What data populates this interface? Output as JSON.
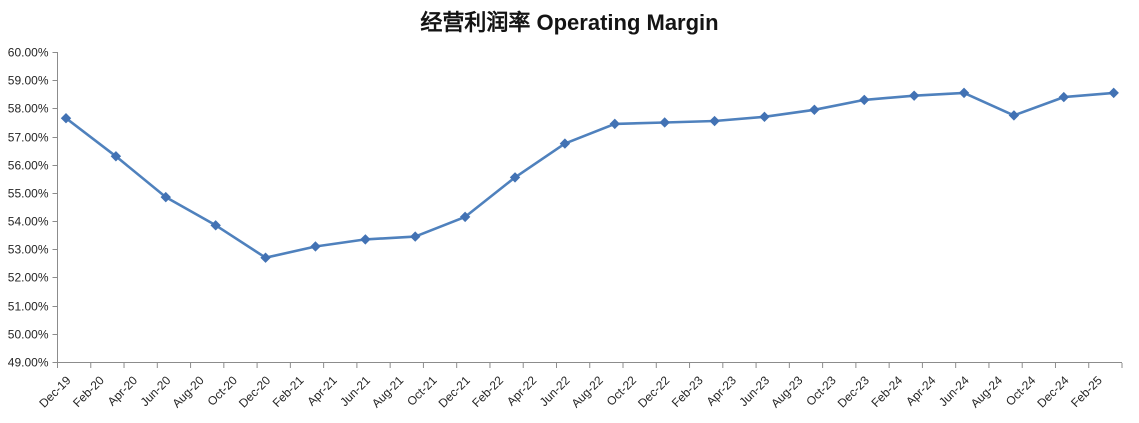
{
  "chart_data": {
    "type": "line",
    "title": "经营利润率 Operating Margin",
    "legend": "none",
    "grid": "off",
    "background": "#ffffff",
    "colors": {
      "line": "#4F81BD",
      "marker": "#4272B4",
      "axis_line": "#8C8C8C",
      "tick_text": "#262626",
      "title_text": "#141414"
    },
    "y_axis": {
      "min": 49,
      "max": 60,
      "step": 1,
      "format": "percent_2dp",
      "tick_labels": [
        "60.00%",
        "59.00%",
        "58.00%",
        "57.00%",
        "56.00%",
        "55.00%",
        "54.00%",
        "53.00%",
        "52.00%",
        "51.00%",
        "50.00%",
        "49.00%"
      ]
    },
    "x_axis": {
      "label_rotation_deg": 45,
      "tick_labels": [
        "Dec-19",
        "Feb-20",
        "Apr-20",
        "Jun-20",
        "Aug-20",
        "Oct-20",
        "Dec-20",
        "Feb-21",
        "Apr-21",
        "Jun-21",
        "Aug-21",
        "Oct-21",
        "Dec-21",
        "Feb-22",
        "Apr-22",
        "Jun-22",
        "Aug-22",
        "Oct-22",
        "Dec-22",
        "Feb-23",
        "Apr-23",
        "Jun-23",
        "Aug-23",
        "Oct-23",
        "Dec-23",
        "Feb-24",
        "Apr-24",
        "Jun-24",
        "Aug-24",
        "Oct-24",
        "Dec-24",
        "Feb-25"
      ]
    },
    "series": [
      {
        "name": "经营利润率 Operating Margin",
        "marker": "diamond",
        "points": [
          {
            "x": "Dec-19",
            "y": 57.65
          },
          {
            "x": "Mar-20",
            "y": 56.3
          },
          {
            "x": "Jun-20",
            "y": 54.85
          },
          {
            "x": "Sep-20",
            "y": 53.85
          },
          {
            "x": "Dec-20",
            "y": 52.7
          },
          {
            "x": "Mar-21",
            "y": 53.1
          },
          {
            "x": "Jun-21",
            "y": 53.35
          },
          {
            "x": "Sep-21",
            "y": 53.45
          },
          {
            "x": "Dec-21",
            "y": 54.15
          },
          {
            "x": "Mar-22",
            "y": 55.55
          },
          {
            "x": "Jun-22",
            "y": 56.75
          },
          {
            "x": "Sep-22",
            "y": 57.45
          },
          {
            "x": "Dec-22",
            "y": 57.5
          },
          {
            "x": "Mar-23",
            "y": 57.55
          },
          {
            "x": "Jun-23",
            "y": 57.7
          },
          {
            "x": "Sep-23",
            "y": 57.95
          },
          {
            "x": "Dec-23",
            "y": 58.3
          },
          {
            "x": "Mar-24",
            "y": 58.45
          },
          {
            "x": "Jun-24",
            "y": 58.55
          },
          {
            "x": "Sep-24",
            "y": 57.75
          },
          {
            "x": "Dec-24",
            "y": 58.4
          },
          {
            "x": "Mar-25",
            "y": 58.55
          }
        ]
      }
    ]
  }
}
